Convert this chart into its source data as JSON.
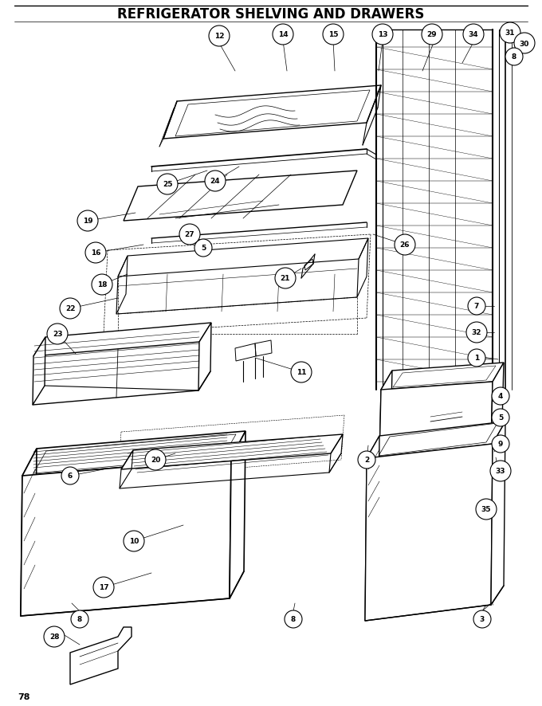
{
  "title": "REFRIGERATOR SHELVING AND DRAWERS",
  "page_number": "78",
  "fig_width": 6.8,
  "fig_height": 8.87,
  "dpi": 100,
  "bg_color": "#ffffff",
  "line_color": "#000000"
}
